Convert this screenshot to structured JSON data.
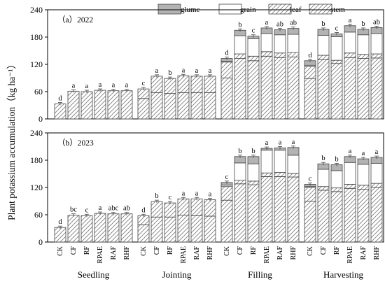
{
  "chart_data": {
    "type": "bar",
    "stacked": true,
    "ylabel": "Plant potassium accumulation（kg ha⁻¹）",
    "ylim": [
      0,
      240
    ],
    "yticks": [
      0,
      60,
      120,
      180,
      240
    ],
    "stages": [
      "Seedling",
      "Jointing",
      "Filling",
      "Harvesting"
    ],
    "treatments": [
      "CK",
      "CF",
      "RF",
      "RPAE",
      "RAF",
      "RHF"
    ],
    "legend": {
      "position": "top-right",
      "entries": [
        {
          "name": "glume",
          "fill": "#b3b3b3",
          "pattern": "solid"
        },
        {
          "name": "grain",
          "fill": "#ffffff",
          "pattern": "none"
        },
        {
          "name": "leaf",
          "fill": "#ffffff",
          "pattern": "hatch"
        },
        {
          "name": "stem",
          "fill": "#ffffff",
          "pattern": "hatch"
        }
      ]
    },
    "panels": [
      {
        "label": "（a）2022",
        "groups": [
          {
            "stage": "Seedling",
            "bars": [
              {
                "treatment": "CK",
                "stem": 33,
                "leaf": 0,
                "grain": 0,
                "glume": 0,
                "sig": "d"
              },
              {
                "treatment": "CF",
                "stem": 61,
                "leaf": 0,
                "grain": 0,
                "glume": 0,
                "sig": "a"
              },
              {
                "treatment": "RF",
                "stem": 60,
                "leaf": 0,
                "grain": 0,
                "glume": 0,
                "sig": "a"
              },
              {
                "treatment": "RPAE",
                "stem": 63,
                "leaf": 0,
                "grain": 0,
                "glume": 0,
                "sig": "a"
              },
              {
                "treatment": "RAF",
                "stem": 62,
                "leaf": 0,
                "grain": 0,
                "glume": 0,
                "sig": "a"
              },
              {
                "treatment": "RHF",
                "stem": 62,
                "leaf": 0,
                "grain": 0,
                "glume": 0,
                "sig": "a"
              }
            ]
          },
          {
            "stage": "Jointing",
            "bars": [
              {
                "treatment": "CK",
                "stem": 45,
                "leaf": 21,
                "grain": 0,
                "glume": 0,
                "sig": "c"
              },
              {
                "treatment": "CF",
                "stem": 58,
                "leaf": 36,
                "grain": 0,
                "glume": 0,
                "sig": "a"
              },
              {
                "treatment": "RF",
                "stem": 56,
                "leaf": 33,
                "grain": 0,
                "glume": 0,
                "sig": "b"
              },
              {
                "treatment": "RPAE",
                "stem": 58,
                "leaf": 37,
                "grain": 0,
                "glume": 0,
                "sig": "a"
              },
              {
                "treatment": "RAF",
                "stem": 58,
                "leaf": 36,
                "grain": 0,
                "glume": 0,
                "sig": "a"
              },
              {
                "treatment": "RHF",
                "stem": 58,
                "leaf": 36,
                "grain": 0,
                "glume": 0,
                "sig": "a"
              }
            ]
          },
          {
            "stage": "Filling",
            "bars": [
              {
                "treatment": "CK",
                "stem": 90,
                "leaf": 35,
                "grain": 2,
                "glume": 6,
                "sig": "d"
              },
              {
                "treatment": "CF",
                "stem": 133,
                "leaf": 10,
                "grain": 40,
                "glume": 12,
                "sig": "b"
              },
              {
                "treatment": "RF",
                "stem": 128,
                "leaf": 10,
                "grain": 38,
                "glume": 6,
                "sig": "c"
              },
              {
                "treatment": "RPAE",
                "stem": 138,
                "leaf": 10,
                "grain": 40,
                "glume": 12,
                "sig": "a"
              },
              {
                "treatment": "RAF",
                "stem": 135,
                "leaf": 10,
                "grain": 40,
                "glume": 11,
                "sig": "ab"
              },
              {
                "treatment": "RHF",
                "stem": 136,
                "leaf": 10,
                "grain": 40,
                "glume": 13,
                "sig": "ab"
              }
            ]
          },
          {
            "stage": "Harvesting",
            "bars": [
              {
                "treatment": "CK",
                "stem": 89,
                "leaf": 26,
                "grain": 3,
                "glume": 10,
                "sig": "d"
              },
              {
                "treatment": "CF",
                "stem": 130,
                "leaf": 10,
                "grain": 44,
                "glume": 13,
                "sig": "b"
              },
              {
                "treatment": "RF",
                "stem": 122,
                "leaf": 7,
                "grain": 52,
                "glume": 6,
                "sig": "c"
              },
              {
                "treatment": "RPAE",
                "stem": 135,
                "leaf": 10,
                "grain": 46,
                "glume": 14,
                "sig": "a"
              },
              {
                "treatment": "RAF",
                "stem": 133,
                "leaf": 9,
                "grain": 43,
                "glume": 12,
                "sig": "b"
              },
              {
                "treatment": "RHF",
                "stem": 134,
                "leaf": 9,
                "grain": 45,
                "glume": 13,
                "sig": "ab"
              }
            ]
          }
        ]
      },
      {
        "label": "（b）2023",
        "groups": [
          {
            "stage": "Seedling",
            "bars": [
              {
                "treatment": "CK",
                "stem": 32,
                "leaf": 0,
                "grain": 0,
                "glume": 0,
                "sig": "d"
              },
              {
                "treatment": "CF",
                "stem": 59,
                "leaf": 0,
                "grain": 0,
                "glume": 0,
                "sig": "bc"
              },
              {
                "treatment": "RF",
                "stem": 58,
                "leaf": 0,
                "grain": 0,
                "glume": 0,
                "sig": "c"
              },
              {
                "treatment": "RPAE",
                "stem": 63,
                "leaf": 0,
                "grain": 0,
                "glume": 0,
                "sig": "a"
              },
              {
                "treatment": "RAF",
                "stem": 62,
                "leaf": 0,
                "grain": 0,
                "glume": 0,
                "sig": "abc"
              },
              {
                "treatment": "RHF",
                "stem": 62,
                "leaf": 0,
                "grain": 0,
                "glume": 0,
                "sig": "ab"
              }
            ]
          },
          {
            "stage": "Jointing",
            "bars": [
              {
                "treatment": "CK",
                "stem": 38,
                "leaf": 20,
                "grain": 0,
                "glume": 0,
                "sig": "d"
              },
              {
                "treatment": "CF",
                "stem": 55,
                "leaf": 34,
                "grain": 0,
                "glume": 0,
                "sig": "b"
              },
              {
                "treatment": "RF",
                "stem": 55,
                "leaf": 31,
                "grain": 0,
                "glume": 0,
                "sig": "c"
              },
              {
                "treatment": "RPAE",
                "stem": 59,
                "leaf": 36,
                "grain": 0,
                "glume": 0,
                "sig": "a"
              },
              {
                "treatment": "RAF",
                "stem": 58,
                "leaf": 37,
                "grain": 0,
                "glume": 0,
                "sig": "a"
              },
              {
                "treatment": "RHF",
                "stem": 57,
                "leaf": 36,
                "grain": 0,
                "glume": 0,
                "sig": "a"
              }
            ]
          },
          {
            "stage": "Filling",
            "bars": [
              {
                "treatment": "CK",
                "stem": 92,
                "leaf": 30,
                "grain": 3,
                "glume": 6,
                "sig": "c"
              },
              {
                "treatment": "CF",
                "stem": 128,
                "leaf": 8,
                "grain": 38,
                "glume": 14,
                "sig": "b"
              },
              {
                "treatment": "RF",
                "stem": 126,
                "leaf": 8,
                "grain": 38,
                "glume": 16,
                "sig": "b"
              },
              {
                "treatment": "RPAE",
                "stem": 144,
                "leaf": 8,
                "grain": 50,
                "glume": 4,
                "sig": "a"
              },
              {
                "treatment": "RAF",
                "stem": 144,
                "leaf": 9,
                "grain": 49,
                "glume": 5,
                "sig": "a"
              },
              {
                "treatment": "RHF",
                "stem": 143,
                "leaf": 8,
                "grain": 40,
                "glume": 17,
                "sig": "a"
              }
            ]
          },
          {
            "stage": "Harvesting",
            "bars": [
              {
                "treatment": "CK",
                "stem": 90,
                "leaf": 30,
                "grain": 2,
                "glume": 5,
                "sig": "c"
              },
              {
                "treatment": "CF",
                "stem": 114,
                "leaf": 8,
                "grain": 38,
                "glume": 12,
                "sig": "b"
              },
              {
                "treatment": "RF",
                "stem": 111,
                "leaf": 8,
                "grain": 38,
                "glume": 13,
                "sig": "b"
              },
              {
                "treatment": "RPAE",
                "stem": 118,
                "leaf": 9,
                "grain": 48,
                "glume": 13,
                "sig": "a"
              },
              {
                "treatment": "RAF",
                "stem": 116,
                "leaf": 9,
                "grain": 46,
                "glume": 12,
                "sig": "a"
              },
              {
                "treatment": "RHF",
                "stem": 120,
                "leaf": 9,
                "grain": 44,
                "glume": 13,
                "sig": "a"
              }
            ]
          }
        ]
      }
    ]
  }
}
